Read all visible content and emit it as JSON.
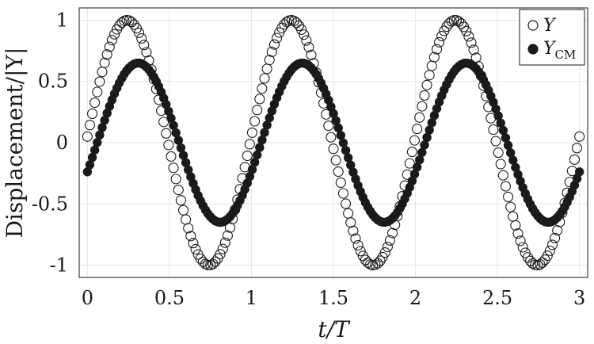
{
  "chart_data": {
    "type": "scatter",
    "xlabel": "t/T",
    "ylabel": "Displacement/|Y|",
    "xlim": [
      -0.05,
      3.05
    ],
    "ylim": [
      -1.1,
      1.1
    ],
    "xticks": [
      0,
      0.5,
      1,
      1.5,
      2,
      2.5,
      3
    ],
    "xtick_labels": [
      "0",
      "0.5",
      "1",
      "1.5",
      "2",
      "2.5",
      "3"
    ],
    "yticks": [
      -1,
      -0.5,
      0,
      0.5,
      1
    ],
    "ytick_labels": [
      "-1",
      "-0.5",
      "0",
      "0.5",
      "1"
    ],
    "grid": true,
    "legend_position": "top-right",
    "sample_count": 201,
    "series": [
      {
        "name": "Y",
        "marker": "open-circle",
        "color": "#1a1a1a",
        "amplitude": 1.0,
        "period": 1.0,
        "phase_shift": 0.0,
        "offset": 0.05
      },
      {
        "name": "Y_CM",
        "legend_base": "Y",
        "legend_sub": "CM",
        "marker": "filled-circle",
        "color": "#1a1a1a",
        "amplitude": 0.65,
        "period": 1.0,
        "phase_shift": 0.04,
        "offset": -0.08
      }
    ]
  }
}
